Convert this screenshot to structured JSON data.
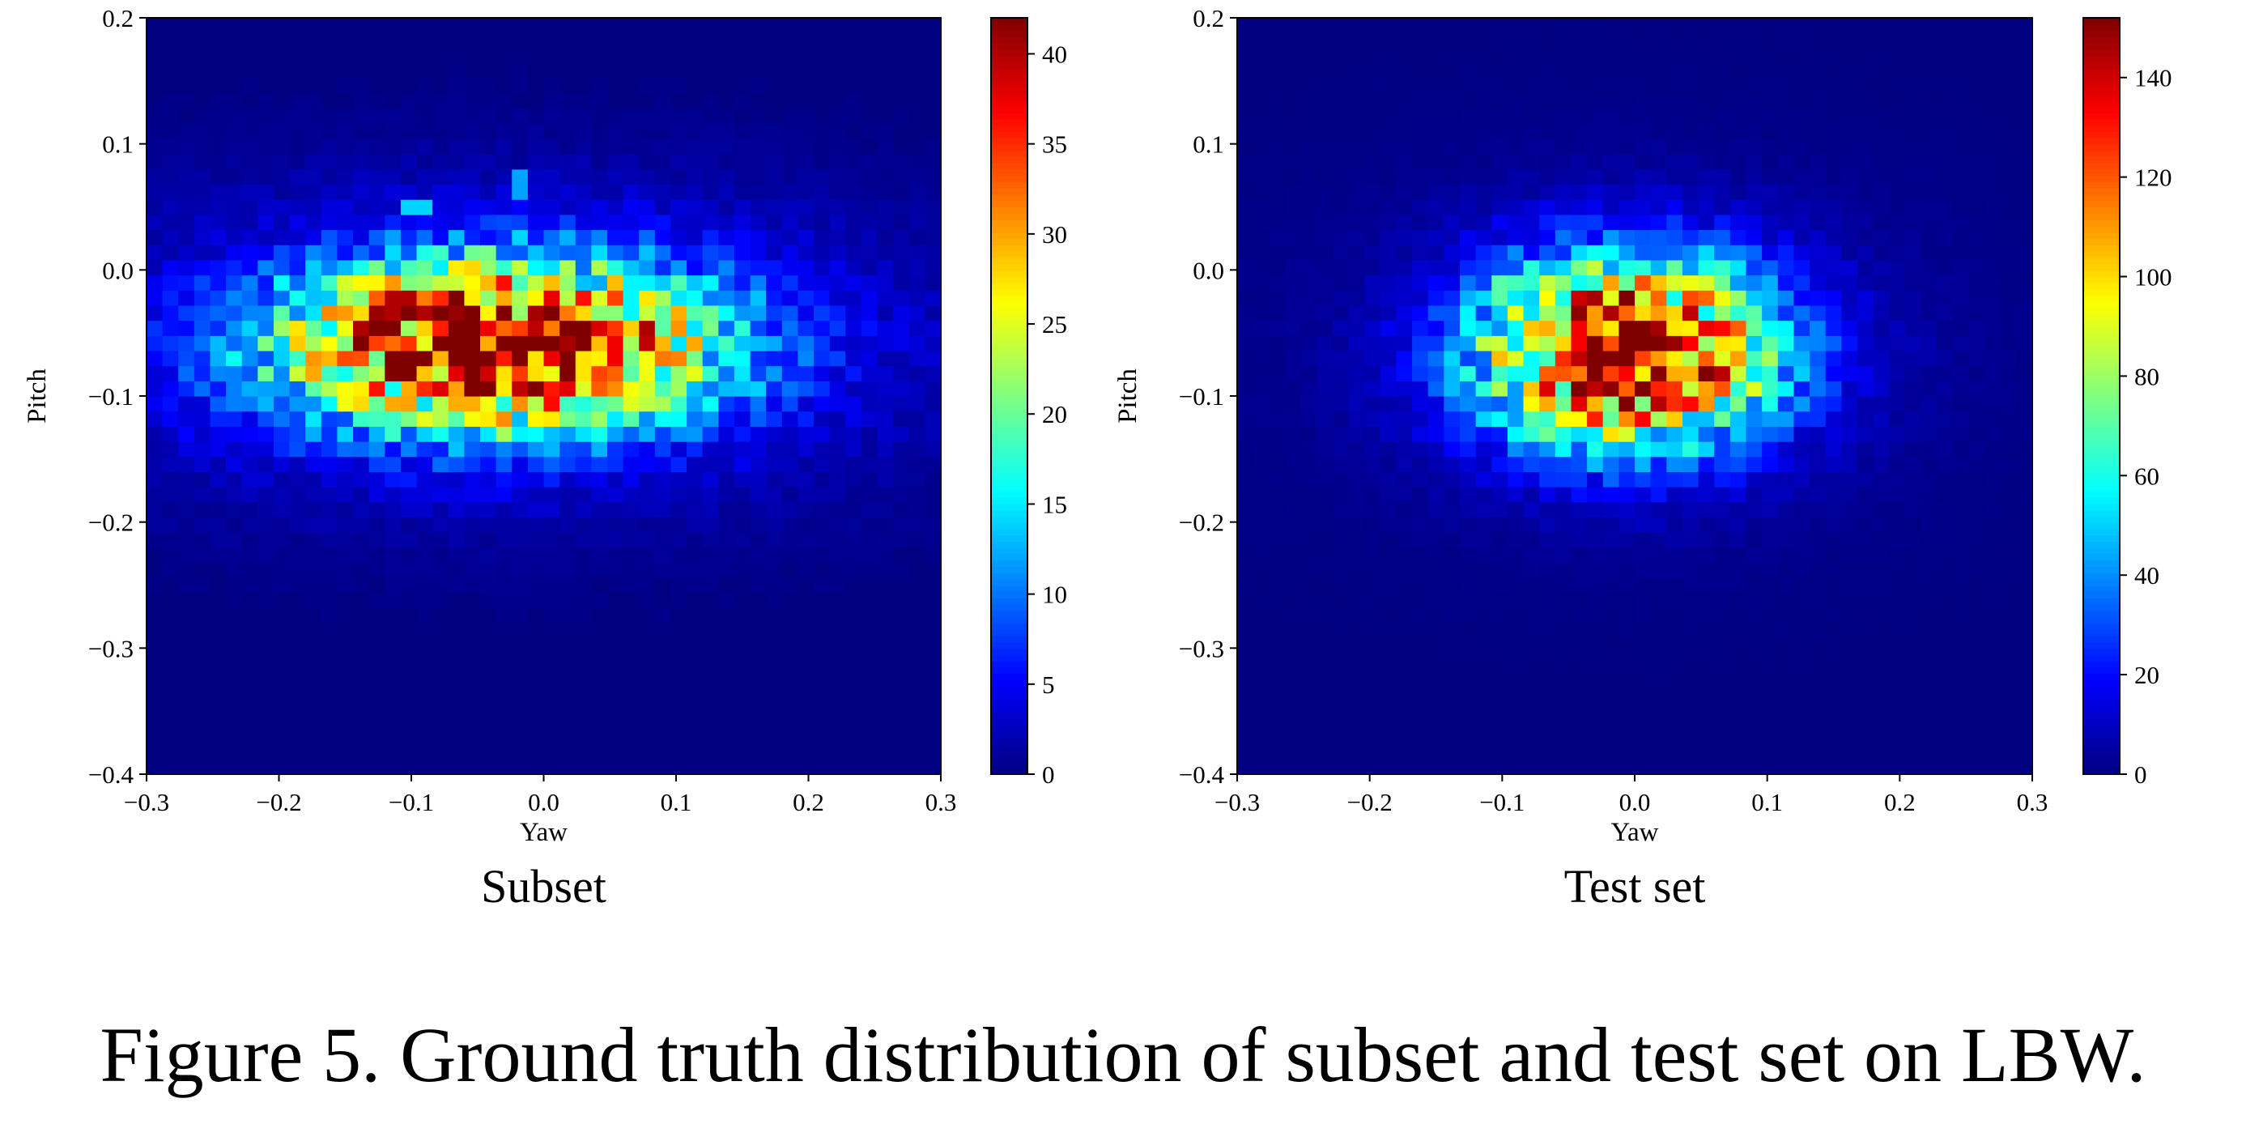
{
  "caption": "Figure 5. Ground truth distribution of subset and test set on LBW.",
  "chart_data": [
    {
      "type": "heatmap",
      "subcaption": "Subset",
      "xlabel": "Yaw",
      "ylabel": "Pitch",
      "xlim": [
        -0.3,
        0.3
      ],
      "ylim": [
        -0.4,
        0.2
      ],
      "xticks": [
        "−0.3",
        "−0.2",
        "−0.1",
        "0.0",
        "0.1",
        "0.2",
        "0.3"
      ],
      "yticks": [
        "−0.4",
        "−0.3",
        "−0.2",
        "−0.1",
        "0.0",
        "0.1",
        "0.2"
      ],
      "colorbar": {
        "colormap": "jet",
        "range": [
          0,
          42
        ],
        "ticks": [
          0,
          5,
          10,
          15,
          20,
          25,
          30,
          35,
          40
        ]
      },
      "bins": {
        "x": 50,
        "y": 50
      },
      "peak": {
        "yaw": -0.035,
        "pitch": -0.06,
        "count": 42
      },
      "spread": {
        "yaw_sd": 0.11,
        "pitch_sd": 0.045
      },
      "hotspots": [
        {
          "yaw": -0.11,
          "pitch": -0.025,
          "count": 40
        },
        {
          "yaw": -0.065,
          "pitch": -0.08,
          "count": 38
        },
        {
          "yaw": -0.095,
          "pitch": 0.048,
          "count": 14
        },
        {
          "yaw": -0.02,
          "pitch": 0.07,
          "count": 12
        }
      ],
      "background_max": 5
    },
    {
      "type": "heatmap",
      "subcaption": "Test set",
      "xlabel": "Yaw",
      "ylabel": "Pitch",
      "xlim": [
        -0.3,
        0.3
      ],
      "ylim": [
        -0.4,
        0.2
      ],
      "xticks": [
        "−0.3",
        "−0.2",
        "−0.1",
        "0.0",
        "0.1",
        "0.2",
        "0.3"
      ],
      "yticks": [
        "−0.4",
        "−0.3",
        "−0.2",
        "−0.1",
        "0.0",
        "0.1",
        "0.2"
      ],
      "colorbar": {
        "colormap": "jet",
        "range": [
          0,
          152
        ],
        "ticks": [
          0,
          20,
          40,
          60,
          80,
          100,
          120,
          140
        ]
      },
      "bins": {
        "x": 50,
        "y": 50
      },
      "peak": {
        "yaw": -0.005,
        "pitch": -0.065,
        "count": 152
      },
      "spread": {
        "yaw_sd": 0.075,
        "pitch_sd": 0.05
      },
      "hotspots": [
        {
          "yaw": -0.1,
          "pitch": -0.015,
          "count": 70
        }
      ],
      "background_max": 8
    }
  ]
}
